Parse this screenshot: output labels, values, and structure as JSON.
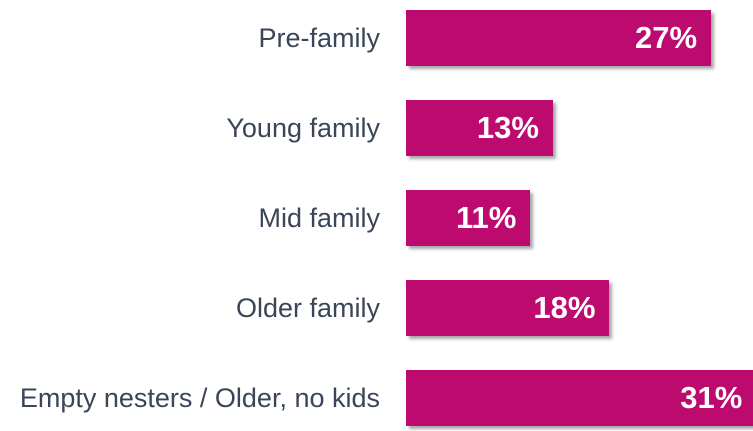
{
  "chart_data": {
    "type": "bar",
    "orientation": "horizontal",
    "categories": [
      "Pre-family",
      "Young family",
      "Mid family",
      "Older family",
      "Empty nesters / Older, no kids"
    ],
    "values": [
      27,
      13,
      11,
      18,
      31
    ],
    "value_labels": [
      "27%",
      "13%",
      "11%",
      "18%",
      "31%"
    ],
    "color": "#bd0a6e"
  }
}
